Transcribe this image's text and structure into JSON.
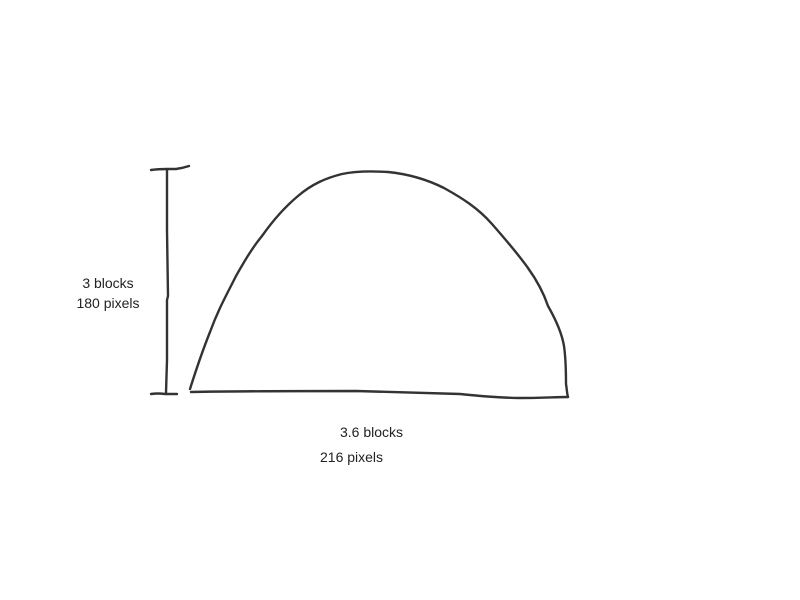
{
  "colors": {
    "ink": "#333333",
    "background": "#ffffff"
  },
  "height_dimension": {
    "blocks": "3 blocks",
    "pixels": "180 pixels"
  },
  "width_dimension": {
    "blocks": "3.6 blocks",
    "pixels": "216 pixels"
  }
}
